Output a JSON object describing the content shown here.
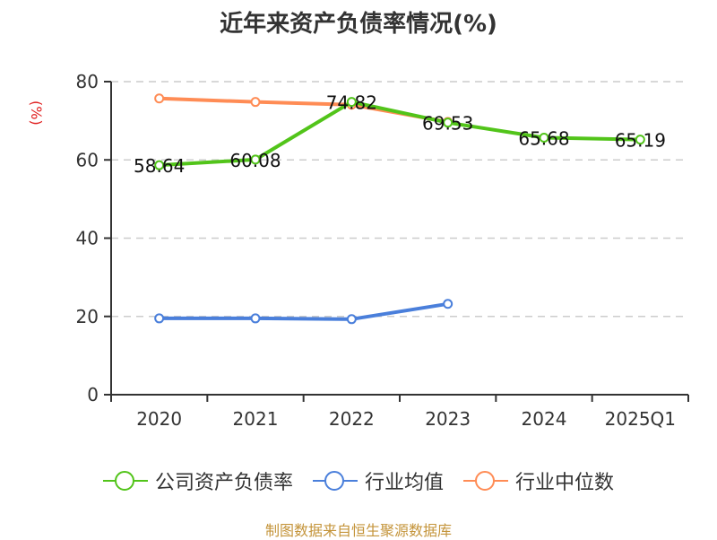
{
  "title": "近年来资产负债率情况(%)",
  "y_axis_name": "(%)",
  "source": "制图数据来自恒生聚源数据库",
  "colors": {
    "company": "#52c41a",
    "industry_avg": "#4a7fdb",
    "industry_median": "#ff8c55",
    "grid": "#cccccc",
    "axis": "#333333"
  },
  "legend": [
    {
      "label": "公司资产负债率",
      "color": "#52c41a"
    },
    {
      "label": "行业均值",
      "color": "#4a7fdb"
    },
    {
      "label": "行业中位数",
      "color": "#ff8c55"
    }
  ],
  "chart_data": {
    "type": "line",
    "title": "近年来资产负债率情况(%)",
    "xlabel": "",
    "ylabel": "(%)",
    "categories": [
      "2020",
      "2021",
      "2022",
      "2023",
      "2024",
      "2025Q1"
    ],
    "ylim": [
      0,
      80
    ],
    "yticks": [
      0,
      20,
      40,
      60,
      80
    ],
    "grid": true,
    "legend_position": "bottom",
    "series": [
      {
        "name": "公司资产负债率",
        "values": [
          58.64,
          60.08,
          74.82,
          69.53,
          65.68,
          65.19
        ],
        "labels_shown": true
      },
      {
        "name": "行业均值",
        "values": [
          19.5,
          19.5,
          19.3,
          23.2,
          null,
          null
        ],
        "labels_shown": false
      },
      {
        "name": "行业中位数",
        "values": [
          75.7,
          74.8,
          74.1,
          69.7,
          null,
          null
        ],
        "labels_shown": false
      }
    ]
  }
}
